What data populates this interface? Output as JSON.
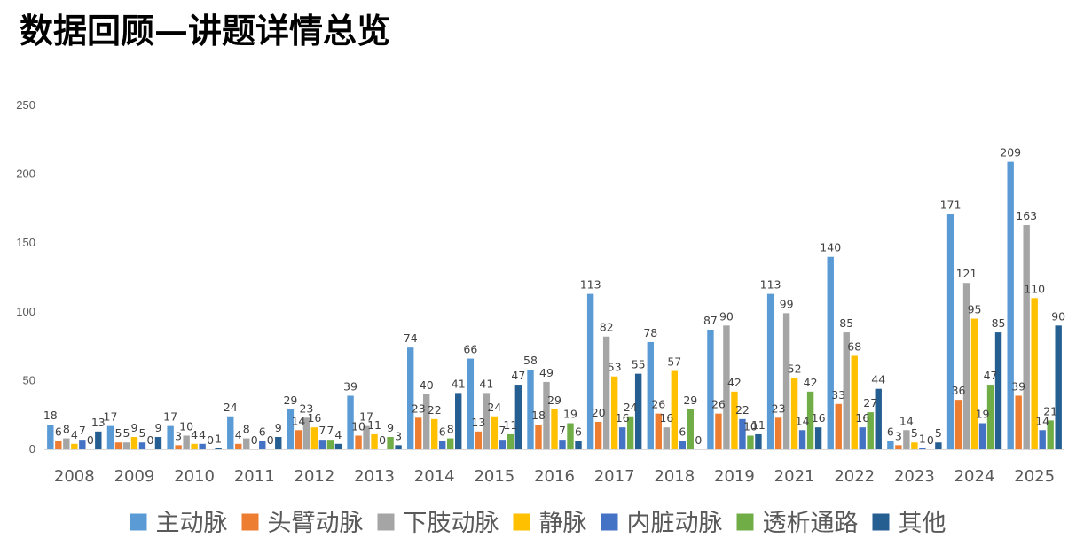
{
  "page_title": "数据回顾—讲题详情总览",
  "chart_data": {
    "type": "bar",
    "title": "",
    "xlabel": "",
    "ylabel": "",
    "ylim": [
      0,
      250
    ],
    "yticks": [
      0,
      50,
      100,
      150,
      200,
      250
    ],
    "grid": false,
    "legend": "bottom",
    "data_labels": true,
    "categories": [
      "2008",
      "2009",
      "2010",
      "2011",
      "2012",
      "2013",
      "2014",
      "2015",
      "2016",
      "2017",
      "2018",
      "2019",
      "2021",
      "2022",
      "2023",
      "2024",
      "2025"
    ],
    "series": [
      {
        "name": "主动脉",
        "color": "#5B9BD5",
        "values": [
          18,
          17,
          17,
          24,
          29,
          39,
          74,
          66,
          58,
          113,
          78,
          87,
          113,
          140,
          6,
          171,
          209
        ]
      },
      {
        "name": "头臂动脉",
        "color": "#ED7D31",
        "values": [
          6,
          5,
          3,
          4,
          14,
          10,
          23,
          13,
          18,
          20,
          26,
          26,
          23,
          33,
          3,
          36,
          39
        ]
      },
      {
        "name": "下肢动脉",
        "color": "#A5A5A5",
        "values": [
          8,
          5,
          10,
          8,
          23,
          17,
          40,
          41,
          49,
          82,
          16,
          90,
          99,
          85,
          14,
          121,
          163
        ]
      },
      {
        "name": "静脉",
        "color": "#FFC000",
        "values": [
          4,
          9,
          4,
          0,
          16,
          11,
          22,
          24,
          29,
          53,
          57,
          42,
          52,
          68,
          5,
          95,
          110
        ]
      },
      {
        "name": "内脏动脉",
        "color": "#4472C4",
        "values": [
          7,
          5,
          4,
          6,
          7,
          0,
          6,
          7,
          7,
          16,
          6,
          22,
          14,
          16,
          1,
          19,
          14
        ]
      },
      {
        "name": "透析通路",
        "color": "#70AD47",
        "values": [
          0,
          0,
          0,
          0,
          7,
          9,
          8,
          11,
          19,
          24,
          29,
          10,
          42,
          27,
          0,
          47,
          21
        ]
      },
      {
        "name": "其他",
        "color": "#255E91",
        "values": [
          13,
          9,
          1,
          9,
          4,
          3,
          41,
          47,
          6,
          55,
          0,
          11,
          16,
          44,
          5,
          85,
          90
        ]
      }
    ]
  }
}
